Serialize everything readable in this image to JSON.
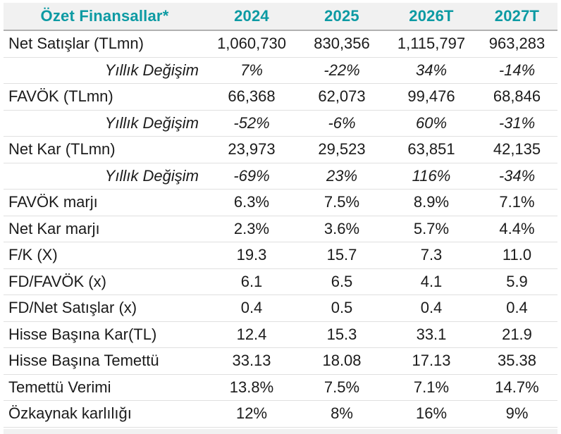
{
  "table": {
    "header": {
      "label": "Özet Finansallar*",
      "columns": [
        "2024",
        "2025",
        "2026T",
        "2027T"
      ]
    },
    "rows": [
      {
        "label": "Net Satışlar (TLmn)",
        "style": "normal",
        "values": [
          "1,060,730",
          "830,356",
          "1,115,797",
          "963,283"
        ]
      },
      {
        "label": "Yıllık Değişim",
        "style": "italic",
        "values": [
          "7%",
          "-22%",
          "34%",
          "-14%"
        ]
      },
      {
        "label": "FAVÖK (TLmn)",
        "style": "normal",
        "values": [
          "66,368",
          "62,073",
          "99,476",
          "68,846"
        ]
      },
      {
        "label": "Yıllık Değişim",
        "style": "italic",
        "values": [
          "-52%",
          "-6%",
          "60%",
          "-31%"
        ]
      },
      {
        "label": "Net Kar (TLmn)",
        "style": "normal",
        "values": [
          "23,973",
          "29,523",
          "63,851",
          "42,135"
        ]
      },
      {
        "label": "Yıllık Değişim",
        "style": "italic",
        "values": [
          "-69%",
          "23%",
          "116%",
          "-34%"
        ]
      },
      {
        "label": "FAVÖK marjı",
        "style": "normal",
        "values": [
          "6.3%",
          "7.5%",
          "8.9%",
          "7.1%"
        ]
      },
      {
        "label": "Net Kar marjı",
        "style": "normal",
        "values": [
          "2.3%",
          "3.6%",
          "5.7%",
          "4.4%"
        ]
      },
      {
        "label": "F/K (X)",
        "style": "normal",
        "values": [
          "19.3",
          "15.7",
          "7.3",
          "11.0"
        ]
      },
      {
        "label": "FD/FAVÖK (x)",
        "style": "normal",
        "values": [
          "6.1",
          "6.5",
          "4.1",
          "5.9"
        ]
      },
      {
        "label": "FD/Net Satışlar (x)",
        "style": "normal",
        "values": [
          "0.4",
          "0.5",
          "0.4",
          "0.4"
        ]
      },
      {
        "label": "Hisse Başına Kar(TL)",
        "style": "normal",
        "values": [
          "12.4",
          "15.3",
          "33.1",
          "21.9"
        ]
      },
      {
        "label": "Hisse Başına Temettü",
        "style": "normal",
        "values": [
          "33.13",
          "18.08",
          "17.13",
          "35.38"
        ]
      },
      {
        "label": "Temettü Verimi",
        "style": "normal",
        "values": [
          "13.8%",
          "7.5%",
          "7.1%",
          "14.7%"
        ]
      },
      {
        "label": "Özkaynak karlılığı",
        "style": "normal",
        "values": [
          "12%",
          "8%",
          "16%",
          "9%"
        ]
      }
    ],
    "colors": {
      "accent_teal": "#0c9aa3",
      "header_bg": "#f1f1f1",
      "header_border": "#b1b1b1",
      "row_border": "#e0e0e0",
      "text": "#1b1b1b"
    }
  }
}
